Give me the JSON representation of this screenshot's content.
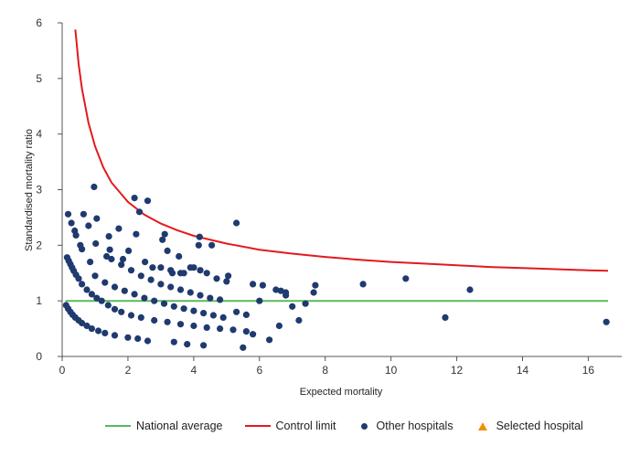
{
  "chart_data": {
    "type": "scatter",
    "title": "",
    "xlabel": "Expected mortality",
    "ylabel": "Standardised mortality ratio",
    "xlim": [
      0,
      17
    ],
    "ylim": [
      0,
      6
    ],
    "x_ticks": [
      0,
      2,
      4,
      6,
      8,
      10,
      12,
      14,
      16
    ],
    "y_ticks": [
      0,
      1,
      2,
      3,
      4,
      5,
      6
    ],
    "legend_position": "bottom",
    "grid": false,
    "colors": {
      "national_average": "#5cb85c",
      "control_limit": "#e31a1c",
      "other_hospitals": "#1f3a6e",
      "selected_hospital": "#f0900a"
    },
    "series": [
      {
        "name": "National average",
        "type": "line",
        "x": [
          0.1,
          16.6
        ],
        "y": [
          1,
          1
        ]
      },
      {
        "name": "Control limit",
        "type": "line",
        "x": [
          0.4,
          0.5,
          0.6,
          0.8,
          1.0,
          1.25,
          1.5,
          2.0,
          2.5,
          3.0,
          3.5,
          4.0,
          5.0,
          6.0,
          7.0,
          8.0,
          9.0,
          10.0,
          11.0,
          12.0,
          13.0,
          14.0,
          15.0,
          16.0,
          16.6
        ],
        "y": [
          5.88,
          5.26,
          4.82,
          4.2,
          3.78,
          3.4,
          3.13,
          2.78,
          2.55,
          2.39,
          2.27,
          2.17,
          2.03,
          1.92,
          1.85,
          1.79,
          1.74,
          1.7,
          1.67,
          1.64,
          1.61,
          1.59,
          1.57,
          1.55,
          1.54
        ]
      },
      {
        "name": "Other hospitals",
        "type": "scatter",
        "points": [
          [
            0.18,
            2.56
          ],
          [
            0.28,
            2.4
          ],
          [
            0.38,
            2.26
          ],
          [
            0.42,
            2.18
          ],
          [
            0.55,
            2.0
          ],
          [
            0.6,
            1.93
          ],
          [
            0.65,
            2.56
          ],
          [
            0.8,
            2.35
          ],
          [
            0.85,
            1.7
          ],
          [
            0.97,
            3.05
          ],
          [
            1.05,
            2.48
          ],
          [
            1.02,
            2.03
          ],
          [
            1.35,
            1.8
          ],
          [
            1.42,
            2.16
          ],
          [
            1.45,
            1.92
          ],
          [
            1.72,
            2.3
          ],
          [
            1.85,
            1.75
          ],
          [
            2.02,
            1.9
          ],
          [
            2.2,
            2.85
          ],
          [
            2.25,
            2.2
          ],
          [
            2.35,
            2.6
          ],
          [
            2.52,
            1.7
          ],
          [
            2.6,
            2.8
          ],
          [
            2.75,
            1.6
          ],
          [
            3.05,
            2.1
          ],
          [
            3.12,
            2.2
          ],
          [
            3.2,
            1.9
          ],
          [
            3.35,
            1.5
          ],
          [
            3.55,
            1.8
          ],
          [
            3.7,
            1.5
          ],
          [
            3.9,
            1.6
          ],
          [
            4.15,
            2.0
          ],
          [
            4.18,
            2.15
          ],
          [
            4.55,
            2.0
          ],
          [
            5.05,
            1.45
          ],
          [
            5.3,
            2.4
          ],
          [
            5.8,
            1.3
          ],
          [
            6.1,
            1.28
          ],
          [
            6.5,
            1.2
          ],
          [
            6.65,
            1.18
          ],
          [
            6.8,
            1.15
          ],
          [
            7.7,
            1.28
          ],
          [
            9.15,
            1.3
          ],
          [
            10.45,
            1.4
          ],
          [
            12.4,
            1.2
          ],
          [
            11.65,
            0.7
          ],
          [
            16.55,
            0.62
          ],
          [
            0.15,
            1.78
          ],
          [
            0.2,
            1.72
          ],
          [
            0.25,
            1.66
          ],
          [
            0.3,
            1.6
          ],
          [
            0.35,
            1.54
          ],
          [
            0.42,
            1.47
          ],
          [
            0.5,
            1.4
          ],
          [
            0.6,
            1.3
          ],
          [
            0.75,
            1.2
          ],
          [
            0.9,
            1.12
          ],
          [
            1.05,
            1.05
          ],
          [
            1.2,
            1.0
          ],
          [
            1.4,
            0.92
          ],
          [
            1.6,
            0.85
          ],
          [
            1.8,
            0.8
          ],
          [
            2.1,
            0.74
          ],
          [
            2.4,
            0.7
          ],
          [
            2.8,
            0.65
          ],
          [
            3.2,
            0.62
          ],
          [
            3.6,
            0.58
          ],
          [
            4.0,
            0.55
          ],
          [
            4.4,
            0.52
          ],
          [
            4.8,
            0.5
          ],
          [
            5.2,
            0.48
          ],
          [
            5.6,
            0.45
          ],
          [
            0.12,
            0.92
          ],
          [
            0.18,
            0.86
          ],
          [
            0.25,
            0.8
          ],
          [
            0.32,
            0.75
          ],
          [
            0.4,
            0.7
          ],
          [
            0.5,
            0.65
          ],
          [
            0.6,
            0.6
          ],
          [
            0.75,
            0.55
          ],
          [
            0.9,
            0.5
          ],
          [
            1.1,
            0.46
          ],
          [
            1.3,
            0.42
          ],
          [
            1.6,
            0.38
          ],
          [
            2.0,
            0.34
          ],
          [
            2.3,
            0.32
          ],
          [
            2.6,
            0.28
          ],
          [
            3.4,
            0.26
          ],
          [
            3.8,
            0.22
          ],
          [
            4.3,
            0.2
          ],
          [
            5.5,
            0.16
          ],
          [
            1.0,
            1.45
          ],
          [
            1.3,
            1.33
          ],
          [
            1.6,
            1.25
          ],
          [
            1.9,
            1.18
          ],
          [
            2.2,
            1.12
          ],
          [
            2.5,
            1.05
          ],
          [
            2.8,
            1.0
          ],
          [
            3.1,
            0.95
          ],
          [
            3.4,
            0.9
          ],
          [
            3.7,
            0.86
          ],
          [
            4.0,
            0.82
          ],
          [
            4.3,
            0.78
          ],
          [
            4.6,
            0.74
          ],
          [
            4.9,
            0.7
          ],
          [
            1.5,
            1.75
          ],
          [
            1.8,
            1.65
          ],
          [
            2.1,
            1.55
          ],
          [
            2.4,
            1.45
          ],
          [
            2.7,
            1.38
          ],
          [
            3.0,
            1.3
          ],
          [
            3.3,
            1.25
          ],
          [
            3.6,
            1.2
          ],
          [
            3.9,
            1.15
          ],
          [
            4.2,
            1.1
          ],
          [
            4.5,
            1.05
          ],
          [
            4.8,
            1.02
          ],
          [
            3.0,
            1.6
          ],
          [
            3.3,
            1.55
          ],
          [
            3.6,
            1.5
          ],
          [
            4.0,
            1.6
          ],
          [
            4.2,
            1.55
          ],
          [
            4.4,
            1.5
          ],
          [
            4.7,
            1.4
          ],
          [
            5.0,
            1.35
          ],
          [
            5.3,
            0.8
          ],
          [
            5.6,
            0.75
          ],
          [
            5.8,
            0.4
          ],
          [
            6.0,
            1.0
          ],
          [
            6.3,
            0.3
          ],
          [
            6.6,
            0.55
          ],
          [
            6.8,
            1.1
          ],
          [
            7.0,
            0.9
          ],
          [
            7.2,
            0.65
          ],
          [
            7.4,
            0.95
          ],
          [
            7.65,
            1.15
          ]
        ]
      },
      {
        "name": "Selected hospital",
        "type": "scatter",
        "points": []
      }
    ]
  },
  "legend": {
    "national_average": "National average",
    "control_limit": "Control limit",
    "other_hospitals": "Other hospitals",
    "selected_hospital": "Selected hospital"
  }
}
